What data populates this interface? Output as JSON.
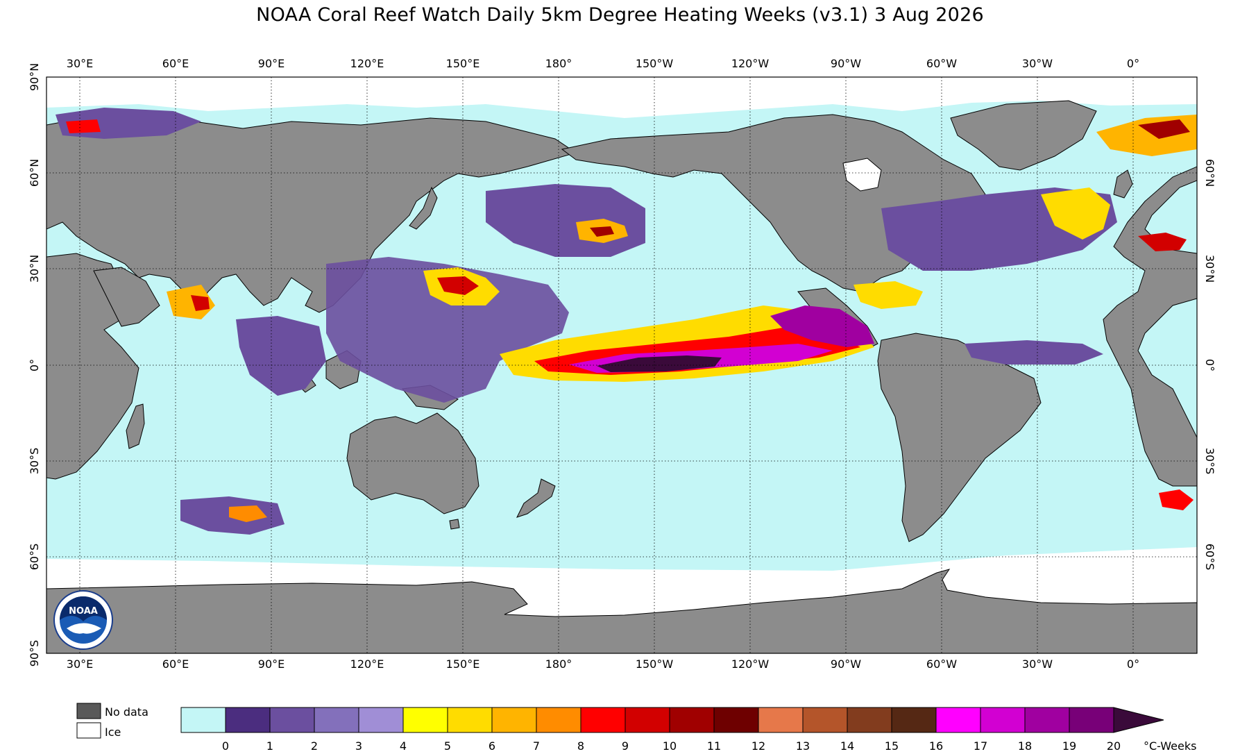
{
  "title": "NOAA Coral Reef Watch Daily 5km Degree Heating Weeks  (v3.1)   3 Aug 2026",
  "map": {
    "top_lon_labels": [
      "30°E",
      "60°E",
      "90°E",
      "120°E",
      "150°E",
      "180°",
      "150°W",
      "120°W",
      "90°W",
      "60°W",
      "30°W",
      "0°"
    ],
    "bottom_lon_labels": [
      "30°E",
      "60°E",
      "90°E",
      "120°E",
      "150°E",
      "180°",
      "150°W",
      "120°W",
      "90°W",
      "60°W",
      "30°W",
      "0°"
    ],
    "left_lat_labels": [
      "90°N",
      "60°N",
      "30°N",
      "0°",
      "30°S",
      "60°S",
      "90°S"
    ],
    "right_lat_labels": [
      "60°N",
      "30°N",
      "0°",
      "30°S",
      "60°S"
    ],
    "logo_text": "NOAA",
    "colors": {
      "ocean": "#c4f6f6",
      "land": "#8c8c8c",
      "ice": "#ffffff",
      "frame": "#000000"
    }
  },
  "legend": {
    "nodata_label": "No data",
    "ice_label": "Ice",
    "nodata_color": "#595959",
    "ice_color": "#ffffff",
    "ticks": [
      "0",
      "1",
      "2",
      "3",
      "4",
      "5",
      "6",
      "7",
      "8",
      "9",
      "10",
      "11",
      "12",
      "13",
      "14",
      "15",
      "16",
      "17",
      "18",
      "19",
      "20"
    ],
    "unit": "°C-Weeks",
    "colors": [
      "#c4f6f6",
      "#4b2d7f",
      "#6b4f9f",
      "#8370bb",
      "#a08ed6",
      "#ffff00",
      "#ffdc00",
      "#ffb400",
      "#ff8c00",
      "#ff0000",
      "#d20000",
      "#a00000",
      "#6e0000",
      "#e6784a",
      "#b4552a",
      "#823c1e",
      "#552814",
      "#ff00ff",
      "#d200d2",
      "#a000a0",
      "#780078"
    ],
    "arrow_color": "#3a0a3a"
  }
}
